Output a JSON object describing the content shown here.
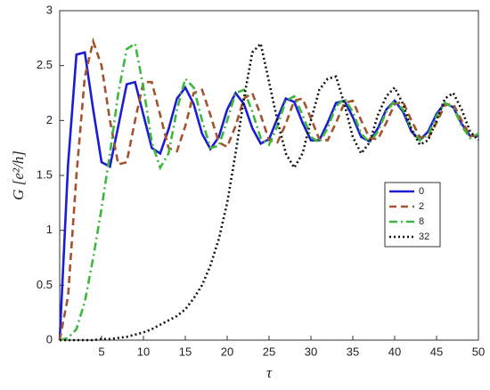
{
  "chart_data": {
    "type": "line",
    "xlabel": "τ",
    "ylabel": "G [e²/h]",
    "xlim": [
      0,
      50
    ],
    "ylim": [
      0,
      3
    ],
    "xticks": [
      5,
      10,
      15,
      20,
      25,
      30,
      35,
      40,
      45,
      50
    ],
    "yticks": [
      0,
      0.5,
      1,
      1.5,
      2,
      2.5,
      3
    ],
    "legend": "right",
    "x": [
      0,
      1,
      2,
      3,
      4,
      5,
      6,
      7,
      8,
      9,
      10,
      11,
      12,
      13,
      14,
      15,
      16,
      17,
      18,
      19,
      20,
      21,
      22,
      23,
      24,
      25,
      26,
      27,
      28,
      29,
      30,
      31,
      32,
      33,
      34,
      35,
      36,
      37,
      38,
      39,
      40,
      41,
      42,
      43,
      44,
      45,
      46,
      47,
      48,
      49,
      50
    ],
    "series": [
      {
        "name": "0",
        "color": "#1c1cd6",
        "dash": "solid",
        "values": [
          0,
          1.6,
          2.6,
          2.62,
          2.1,
          1.62,
          1.58,
          1.95,
          2.33,
          2.35,
          2.05,
          1.75,
          1.7,
          1.92,
          2.2,
          2.3,
          2.15,
          1.88,
          1.74,
          1.85,
          2.1,
          2.25,
          2.15,
          1.93,
          1.79,
          1.83,
          2.02,
          2.2,
          2.17,
          1.98,
          1.82,
          1.82,
          1.98,
          2.16,
          2.18,
          2.03,
          1.85,
          1.81,
          1.93,
          2.1,
          2.18,
          2.08,
          1.9,
          1.82,
          1.9,
          2.06,
          2.16,
          2.12,
          1.97,
          1.86,
          1.86
        ]
      },
      {
        "name": "2",
        "color": "#a5532e",
        "dash": "dashed",
        "values": [
          0,
          0.4,
          1.5,
          2.4,
          2.72,
          2.5,
          2.0,
          1.6,
          1.62,
          2.0,
          2.35,
          2.35,
          2.05,
          1.75,
          1.72,
          1.95,
          2.25,
          2.28,
          2.05,
          1.8,
          1.76,
          1.95,
          2.2,
          2.25,
          2.05,
          1.82,
          1.8,
          1.97,
          2.18,
          2.2,
          2.02,
          1.83,
          1.82,
          1.98,
          2.16,
          2.18,
          2.0,
          1.84,
          1.83,
          1.98,
          2.15,
          2.17,
          2.0,
          1.85,
          1.84,
          1.98,
          2.14,
          2.15,
          2.0,
          1.86,
          1.86
        ]
      },
      {
        "name": "8",
        "color": "#3db83d",
        "dash": "dashdot",
        "values": [
          0,
          0.02,
          0.1,
          0.35,
          0.75,
          1.2,
          1.7,
          2.25,
          2.65,
          2.7,
          2.3,
          1.8,
          1.57,
          1.7,
          2.1,
          2.38,
          2.3,
          2.0,
          1.75,
          1.77,
          2.0,
          2.25,
          2.28,
          2.08,
          1.84,
          1.78,
          1.95,
          2.18,
          2.22,
          2.05,
          1.85,
          1.8,
          1.93,
          2.13,
          2.2,
          2.08,
          1.88,
          1.8,
          1.9,
          2.08,
          2.18,
          2.1,
          1.92,
          1.82,
          1.87,
          2.04,
          2.16,
          2.12,
          1.95,
          1.84,
          1.88
        ]
      },
      {
        "name": "32",
        "color": "#111111",
        "dash": "dotted",
        "values": [
          0,
          0,
          0,
          0,
          0,
          0.01,
          0.01,
          0.02,
          0.03,
          0.05,
          0.07,
          0.1,
          0.14,
          0.18,
          0.22,
          0.28,
          0.38,
          0.5,
          0.68,
          0.92,
          1.25,
          1.7,
          2.2,
          2.62,
          2.7,
          2.35,
          2.0,
          1.7,
          1.57,
          1.7,
          2.0,
          2.28,
          2.38,
          2.4,
          2.15,
          1.85,
          1.7,
          1.8,
          2.05,
          2.22,
          2.3,
          2.15,
          1.92,
          1.78,
          1.82,
          2.0,
          2.2,
          2.25,
          2.1,
          1.9,
          1.82
        ]
      }
    ]
  }
}
